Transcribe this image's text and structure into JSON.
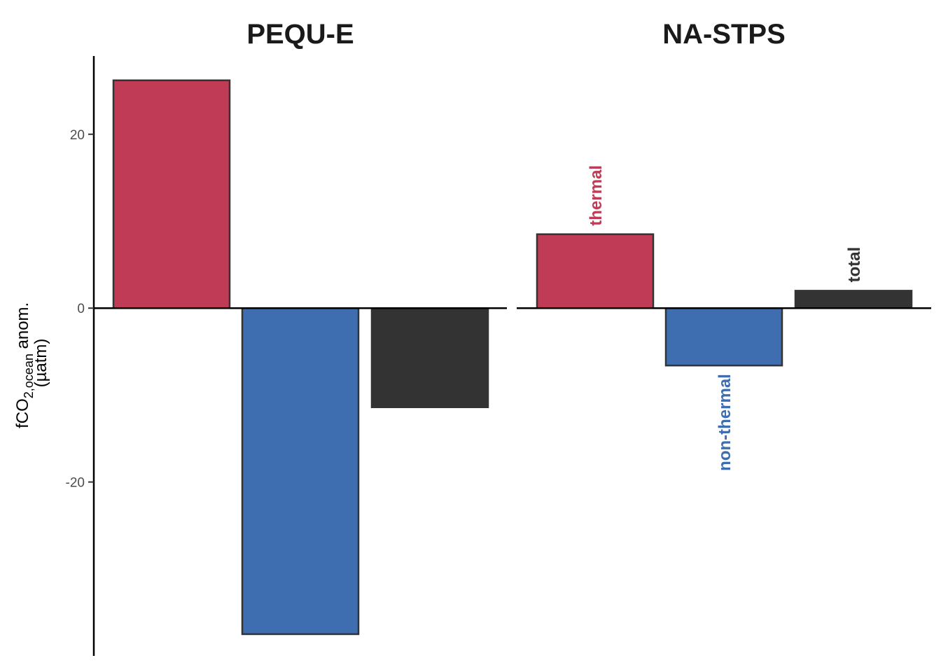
{
  "chart_data": {
    "type": "bar",
    "ylabel": {
      "line1_prefix": "fCO",
      "line1_subscript": "2,ocean",
      "line1_suffix": " anom.",
      "line2": "(µatm)"
    },
    "ylim": [
      -40,
      29
    ],
    "yticks": [
      {
        "value": 20,
        "label": "20"
      },
      {
        "value": 0,
        "label": "0"
      },
      {
        "value": -20,
        "label": "-20"
      }
    ],
    "grid": false,
    "categories": [
      "thermal",
      "non-thermal",
      "total"
    ],
    "colors": {
      "thermal": "#C03B55",
      "non-thermal": "#3E6EB0",
      "total": "#333333"
    },
    "panels": [
      {
        "title": "PEQU-E",
        "values": [
          26.2,
          -37.5,
          -11.4
        ],
        "show_labels": false
      },
      {
        "title": "NA-STPS",
        "values": [
          8.5,
          -6.6,
          2.0
        ],
        "show_labels": true
      }
    ]
  }
}
